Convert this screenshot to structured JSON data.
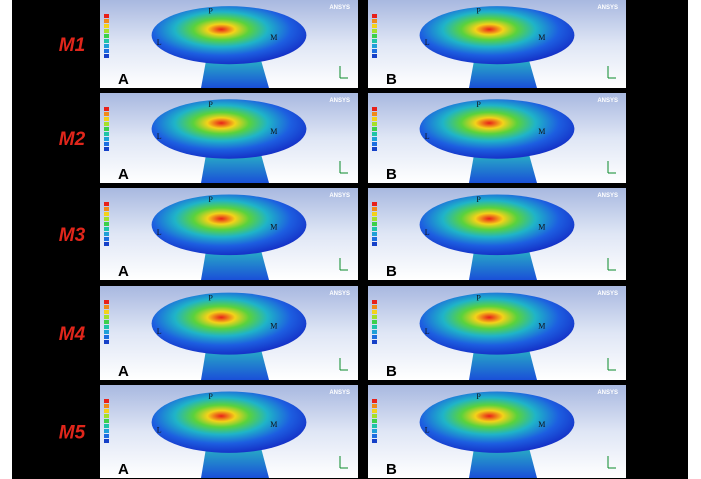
{
  "rows": [
    {
      "label": "M1",
      "panels": [
        {
          "letter": "A",
          "annotations": [
            "P",
            "L",
            "M"
          ],
          "brand": "ANSYS"
        },
        {
          "letter": "B",
          "annotations": [
            "P",
            "L",
            "M"
          ],
          "brand": "ANSYS"
        }
      ]
    },
    {
      "label": "M2",
      "panels": [
        {
          "letter": "A",
          "annotations": [
            "P",
            "L",
            "M"
          ],
          "brand": "ANSYS"
        },
        {
          "letter": "B",
          "annotations": [
            "P",
            "L",
            "M"
          ],
          "brand": "ANSYS"
        }
      ]
    },
    {
      "label": "M3",
      "panels": [
        {
          "letter": "A",
          "annotations": [
            "P",
            "L",
            "M"
          ],
          "brand": "ANSYS"
        },
        {
          "letter": "B",
          "annotations": [
            "P",
            "L",
            "M"
          ],
          "brand": "ANSYS"
        }
      ]
    },
    {
      "label": "M4",
      "panels": [
        {
          "letter": "A",
          "annotations": [
            "P",
            "L",
            "M"
          ],
          "brand": "ANSYS"
        },
        {
          "letter": "B",
          "annotations": [
            "P",
            "L",
            "M"
          ],
          "brand": "ANSYS"
        }
      ]
    },
    {
      "label": "M5",
      "panels": [
        {
          "letter": "A",
          "annotations": [
            "P",
            "L",
            "M"
          ],
          "brand": "ANSYS"
        },
        {
          "letter": "B",
          "annotations": [
            "P",
            "L",
            "M"
          ],
          "brand": "ANSYS"
        }
      ]
    }
  ]
}
